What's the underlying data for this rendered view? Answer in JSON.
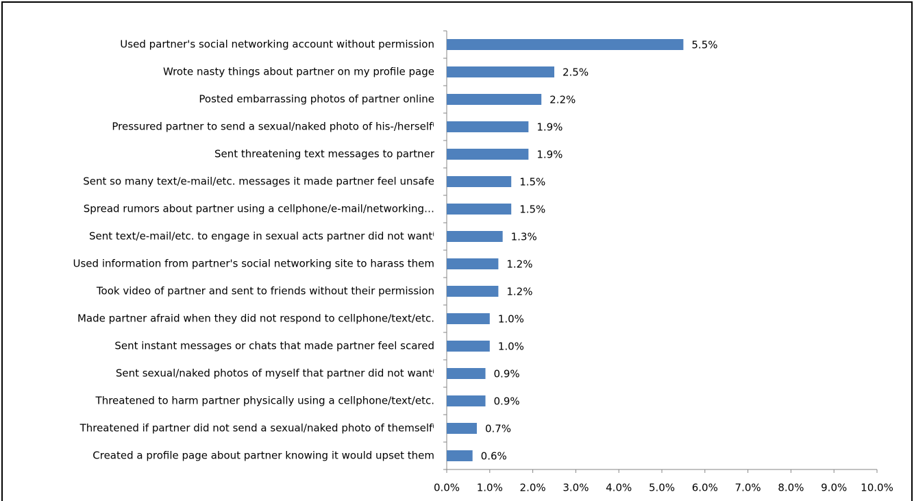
{
  "chart_data": {
    "type": "bar",
    "orientation": "horizontal",
    "categories": [
      "Used partner's social networking account without permission",
      "Wrote nasty things about partner on my profile page",
      "Posted embarrassing photos of partner online",
      "Pressured partner to send a sexual/naked photo of his-/herselfⁱ",
      "Sent threatening text messages to partner",
      "Sent so many text/e-mail/etc. messages it made partner feel unsafe",
      "Spread rumors about partner using a cellphone/e-mail/networking…",
      "Sent text/e-mail/etc. to engage in sexual acts partner did not wantⁱ",
      "Used information from partner's social networking site to harass them",
      "Took video of partner and sent to friends without their permission",
      "Made partner afraid when they did not respond to cellphone/text/etc.",
      "Sent instant messages or chats that made partner feel scared",
      "Sent sexual/naked photos of myself that partner did not wantⁱ",
      "Threatened to harm partner physically using a cellphone/text/etc.",
      "Threatened if partner did not send a sexual/naked photo of themselfⁱ",
      "Created a profile page about partner knowing it would upset them"
    ],
    "values": [
      5.5,
      2.5,
      2.2,
      1.9,
      1.9,
      1.5,
      1.5,
      1.3,
      1.2,
      1.2,
      1.0,
      1.0,
      0.9,
      0.9,
      0.7,
      0.6
    ],
    "value_labels": [
      "5.5%",
      "2.5%",
      "2.2%",
      "1.9%",
      "1.9%",
      "1.5%",
      "1.5%",
      "1.3%",
      "1.2%",
      "1.2%",
      "1.0%",
      "1.0%",
      "0.9%",
      "0.9%",
      "0.7%",
      "0.6%"
    ],
    "color": "#4f81bd",
    "xlim": [
      0,
      10
    ],
    "xticks": [
      {
        "value": 0,
        "label": "0.0%"
      },
      {
        "value": 1,
        "label": "1.0%"
      },
      {
        "value": 2,
        "label": "2.0%"
      },
      {
        "value": 3,
        "label": "3.0%"
      },
      {
        "value": 4,
        "label": "4.0%"
      },
      {
        "value": 5,
        "label": "5.0%"
      },
      {
        "value": 6,
        "label": "6.0%"
      },
      {
        "value": 7,
        "label": "7.0%"
      },
      {
        "value": 8,
        "label": "8.0%"
      },
      {
        "value": 9,
        "label": "9.0%"
      },
      {
        "value": 10,
        "label": "10.0%"
      }
    ],
    "grid": false
  }
}
